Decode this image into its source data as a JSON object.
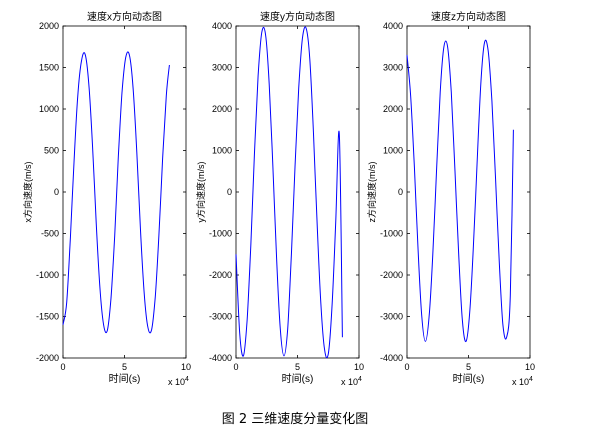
{
  "caption": "图 2  三维速度分量变化图",
  "chart_data": [
    {
      "type": "line",
      "title": "速度x方向动态图",
      "xlabel": "时间(s)",
      "ylabel": "x方向速度(m/s)",
      "xlim": [
        0,
        100000
      ],
      "ylim": [
        -2000,
        2000
      ],
      "x_ticks": [
        "0",
        "5",
        "10"
      ],
      "x_multiplier": "x 10^4",
      "y_ticks": [
        "-2000",
        "-1500",
        "-1000",
        "-500",
        "0",
        "500",
        "1000",
        "1500",
        "2000"
      ],
      "series": [
        {
          "color": "#0000ff",
          "x": [
            0,
            3000,
            6000,
            9000,
            12000,
            15000,
            18000,
            21000,
            24000,
            27000,
            30000,
            33000,
            36000,
            39000,
            42000,
            45000,
            48000,
            51000,
            54000,
            57000,
            60000,
            63000,
            66000,
            69000,
            72000,
            75000,
            78000,
            81000,
            84000,
            86500
          ],
          "y": [
            -1600,
            -1330,
            -550,
            380,
            1160,
            1580,
            1660,
            1300,
            560,
            -370,
            -1150,
            -1600,
            -1670,
            -1280,
            -530,
            420,
            1200,
            1620,
            1650,
            1250,
            480,
            -460,
            -1220,
            -1630,
            -1660,
            -1260,
            -520,
            400,
            1160,
            1530
          ]
        }
      ]
    },
    {
      "type": "line",
      "title": "速度y方向动态图",
      "xlabel": "时间(s)",
      "ylabel": "y方向速度(m/s)",
      "xlim": [
        0,
        100000
      ],
      "ylim": [
        -4000,
        4000
      ],
      "x_ticks": [
        "0",
        "5",
        "10"
      ],
      "x_multiplier": "x 10^4",
      "y_ticks": [
        "-4000",
        "-3000",
        "-2000",
        "-1000",
        "0",
        "1000",
        "2000",
        "3000",
        "4000"
      ],
      "series": [
        {
          "color": "#0000ff",
          "x": [
            0,
            3000,
            6000,
            9000,
            12000,
            15000,
            18000,
            21000,
            24000,
            27000,
            30000,
            33000,
            36000,
            39000,
            42000,
            45000,
            48000,
            51000,
            54000,
            57000,
            60000,
            63000,
            66000,
            69000,
            72000,
            75000,
            78000,
            81000,
            84000,
            86500
          ],
          "y": [
            -1500,
            -3400,
            -3950,
            -3100,
            -1300,
            900,
            2800,
            3850,
            3800,
            2600,
            600,
            -1600,
            -3300,
            -3950,
            -3300,
            -1500,
            600,
            2500,
            3700,
            3950,
            3200,
            1400,
            -800,
            -2700,
            -3800,
            -3900,
            -2800,
            -800,
            1400,
            -3500
          ]
        }
      ]
    },
    {
      "type": "line",
      "title": "速度z方向动态图",
      "xlabel": "时间(s)",
      "ylabel": "z方向速度(m/s)",
      "xlim": [
        0,
        100000
      ],
      "ylim": [
        -4000,
        4000
      ],
      "x_ticks": [
        "0",
        "5",
        "10"
      ],
      "x_multiplier": "x 10^4",
      "y_ticks": [
        "-4000",
        "-3000",
        "-2000",
        "-1000",
        "0",
        "1000",
        "2000",
        "3000",
        "4000"
      ],
      "series": [
        {
          "color": "#0000ff",
          "x": [
            0,
            3000,
            6000,
            9000,
            12000,
            15000,
            18000,
            21000,
            24000,
            27000,
            30000,
            33000,
            36000,
            39000,
            42000,
            45000,
            48000,
            51000,
            54000,
            57000,
            60000,
            63000,
            66000,
            69000,
            72000,
            75000,
            78000,
            81000,
            84000,
            86500
          ],
          "y": [
            3300,
            2300,
            600,
            -1400,
            -3000,
            -3600,
            -3000,
            -1500,
            500,
            2400,
            3500,
            3500,
            2400,
            500,
            -1500,
            -3100,
            -3600,
            -2900,
            -1300,
            700,
            2600,
            3600,
            3400,
            2200,
            300,
            -1700,
            -3200,
            -3500,
            -2500,
            1500
          ]
        }
      ]
    }
  ]
}
